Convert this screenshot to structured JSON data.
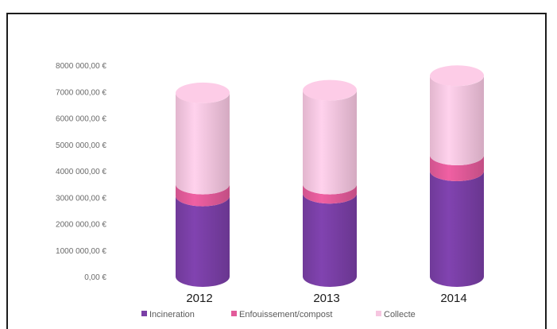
{
  "chart_data": {
    "type": "bar",
    "stacked": true,
    "style": "3d-cylinder",
    "categories": [
      "2012",
      "2013",
      "2014"
    ],
    "series": [
      {
        "name": "Incineration",
        "color": "#7a3fa6",
        "values": [
          3050000,
          3150000,
          4000000
        ]
      },
      {
        "name": "Enfouissement/compost",
        "color": "#e25b9a",
        "values": [
          450000,
          350000,
          600000
        ]
      },
      {
        "name": "Collecte",
        "color": "#f6c6e0",
        "values": [
          3450000,
          3550000,
          3000000
        ]
      }
    ],
    "y_ticks": [
      "0,00 €",
      "1000 000,00 €",
      "2000 000,00 €",
      "3000 000,00 €",
      "4000 000,00 €",
      "5000 000,00 €",
      "6000 000,00 €",
      "7000 000,00 €",
      "8000 000,00 €"
    ],
    "ylim": [
      0,
      8000000
    ],
    "grid": false,
    "legend_position": "bottom"
  }
}
